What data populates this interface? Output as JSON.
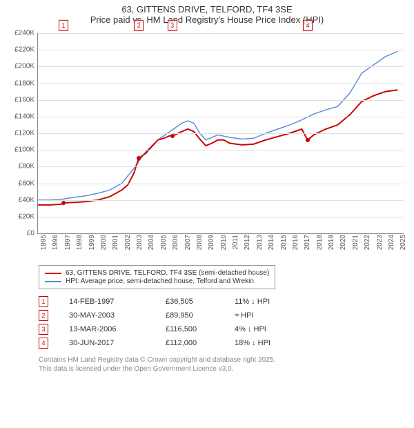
{
  "title": {
    "line1": "63, GITTENS DRIVE, TELFORD, TF4 3SE",
    "line2": "Price paid vs. HM Land Registry's House Price Index (HPI)"
  },
  "chart": {
    "type": "line",
    "xmin": 1995,
    "xmax": 2025.5,
    "ymin": 0,
    "ymax": 240000,
    "ytick_step": 20000,
    "yticks": [
      "£0",
      "£20K",
      "£40K",
      "£60K",
      "£80K",
      "£100K",
      "£120K",
      "£140K",
      "£160K",
      "£180K",
      "£200K",
      "£220K",
      "£240K"
    ],
    "xticks": [
      "1995",
      "1996",
      "1997",
      "1998",
      "1999",
      "2000",
      "2001",
      "2002",
      "2003",
      "2004",
      "2005",
      "2006",
      "2007",
      "2008",
      "2009",
      "2010",
      "2011",
      "2012",
      "2013",
      "2014",
      "2015",
      "2016",
      "2017",
      "2018",
      "2019",
      "2020",
      "2021",
      "2022",
      "2023",
      "2024",
      "2025"
    ],
    "grid_color": "#e0e0e0",
    "axis_color": "#888888",
    "background_color": "#ffffff",
    "series": [
      {
        "name": "price_paid",
        "label": "63, GITTENS DRIVE, TELFORD, TF4 3SE (semi-detached house)",
        "color": "#cc0000",
        "width": 2,
        "data": [
          [
            1995,
            34000
          ],
          [
            1996,
            34000
          ],
          [
            1997,
            35000
          ],
          [
            1997.12,
            36505
          ],
          [
            1998,
            37000
          ],
          [
            1999,
            38000
          ],
          [
            2000,
            40000
          ],
          [
            2001,
            44000
          ],
          [
            2002,
            52000
          ],
          [
            2002.5,
            58000
          ],
          [
            2003,
            72000
          ],
          [
            2003.41,
            89950
          ],
          [
            2004,
            96000
          ],
          [
            2004.5,
            104000
          ],
          [
            2005,
            112000
          ],
          [
            2005.5,
            114000
          ],
          [
            2006,
            117000
          ],
          [
            2006.2,
            116500
          ],
          [
            2007,
            122000
          ],
          [
            2007.5,
            125000
          ],
          [
            2008,
            122000
          ],
          [
            2008.5,
            113000
          ],
          [
            2009,
            105000
          ],
          [
            2009.5,
            108000
          ],
          [
            2010,
            112000
          ],
          [
            2010.5,
            112000
          ],
          [
            2011,
            108000
          ],
          [
            2012,
            106000
          ],
          [
            2013,
            107000
          ],
          [
            2014,
            112000
          ],
          [
            2015,
            116000
          ],
          [
            2016,
            120000
          ],
          [
            2017,
            125000
          ],
          [
            2017.49,
            112000
          ],
          [
            2017.5,
            112000
          ],
          [
            2018,
            118000
          ],
          [
            2019,
            125000
          ],
          [
            2020,
            130000
          ],
          [
            2021,
            142000
          ],
          [
            2022,
            158000
          ],
          [
            2023,
            165000
          ],
          [
            2024,
            170000
          ],
          [
            2025,
            172000
          ]
        ]
      },
      {
        "name": "hpi",
        "label": "HPI: Average price, semi-detached house, Telford and Wrekin",
        "color": "#5b8fd6",
        "width": 1.5,
        "data": [
          [
            1995,
            40000
          ],
          [
            1996,
            40000
          ],
          [
            1997,
            41000
          ],
          [
            1998,
            43000
          ],
          [
            1999,
            45000
          ],
          [
            2000,
            48000
          ],
          [
            2001,
            52000
          ],
          [
            2002,
            60000
          ],
          [
            2003,
            78000
          ],
          [
            2004,
            98000
          ],
          [
            2005,
            112000
          ],
          [
            2006,
            122000
          ],
          [
            2007,
            132000
          ],
          [
            2007.5,
            135000
          ],
          [
            2008,
            132000
          ],
          [
            2008.5,
            120000
          ],
          [
            2009,
            112000
          ],
          [
            2010,
            118000
          ],
          [
            2011,
            115000
          ],
          [
            2012,
            113000
          ],
          [
            2013,
            114000
          ],
          [
            2014,
            120000
          ],
          [
            2015,
            125000
          ],
          [
            2016,
            130000
          ],
          [
            2017,
            136000
          ],
          [
            2018,
            143000
          ],
          [
            2019,
            148000
          ],
          [
            2020,
            152000
          ],
          [
            2021,
            168000
          ],
          [
            2022,
            192000
          ],
          [
            2023,
            202000
          ],
          [
            2024,
            212000
          ],
          [
            2025,
            218000
          ]
        ]
      }
    ],
    "markers": [
      {
        "n": "1",
        "x": 1997.12,
        "y": 36505
      },
      {
        "n": "2",
        "x": 2003.41,
        "y": 89950
      },
      {
        "n": "3",
        "x": 2006.2,
        "y": 116500
      },
      {
        "n": "4",
        "x": 2017.5,
        "y": 112000
      }
    ]
  },
  "legend": [
    {
      "color": "#cc0000",
      "label": "63, GITTENS DRIVE, TELFORD, TF4 3SE (semi-detached house)"
    },
    {
      "color": "#5b8fd6",
      "label": "HPI: Average price, semi-detached house, Telford and Wrekin"
    }
  ],
  "events": [
    {
      "n": "1",
      "date": "14-FEB-1997",
      "price": "£36,505",
      "hpi": "11% ↓ HPI"
    },
    {
      "n": "2",
      "date": "30-MAY-2003",
      "price": "£89,950",
      "hpi": "≈ HPI"
    },
    {
      "n": "3",
      "date": "13-MAR-2006",
      "price": "£116,500",
      "hpi": "4% ↓ HPI"
    },
    {
      "n": "4",
      "date": "30-JUN-2017",
      "price": "£112,000",
      "hpi": "18% ↓ HPI"
    }
  ],
  "footer": {
    "line1": "Contains HM Land Registry data © Crown copyright and database right 2025.",
    "line2": "This data is licensed under the Open Government Licence v3.0."
  }
}
